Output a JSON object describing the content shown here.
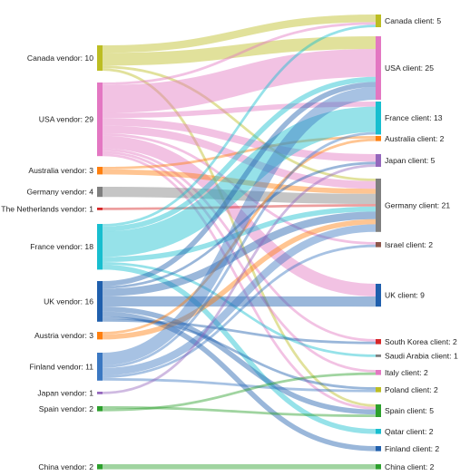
{
  "diagram": {
    "type": "sankey",
    "sources": [
      {
        "id": "canada",
        "label": "Canada vendor: 10",
        "value": 10,
        "color": "#bcbd22"
      },
      {
        "id": "usa",
        "label": "USA vendor: 29",
        "value": 29,
        "color": "#e377c2"
      },
      {
        "id": "australia",
        "label": "Australia vendor: 3",
        "value": 3,
        "color": "#ff7f0e"
      },
      {
        "id": "germany",
        "label": "Germany vendor: 4",
        "value": 4,
        "color": "#7f7f7f"
      },
      {
        "id": "netherlands",
        "label": "The Netherlands vendor: 1",
        "value": 1,
        "color": "#d62728"
      },
      {
        "id": "france",
        "label": "France vendor: 18",
        "value": 18,
        "color": "#17becf"
      },
      {
        "id": "uk",
        "label": "UK vendor: 16",
        "value": 16,
        "color": "#1f5fad"
      },
      {
        "id": "austria",
        "label": "Austria vendor: 3",
        "value": 3,
        "color": "#ff7f0e"
      },
      {
        "id": "finland",
        "label": "Finland vendor: 11",
        "value": 11,
        "color": "#3b78c2"
      },
      {
        "id": "japan",
        "label": "Japan vendor: 1",
        "value": 1,
        "color": "#9467bd"
      },
      {
        "id": "spain",
        "label": "Spain vendor: 2",
        "value": 2,
        "color": "#2ca02c"
      },
      {
        "id": "china",
        "label": "China vendor: 2",
        "value": 2,
        "color": "#2ca02c"
      }
    ],
    "targets": [
      {
        "id": "canada",
        "label": "Canada client: 5",
        "value": 5,
        "color": "#bcbd22"
      },
      {
        "id": "usa",
        "label": "USA client: 25",
        "value": 25,
        "color": "#e377c2"
      },
      {
        "id": "france",
        "label": "France client: 13",
        "value": 13,
        "color": "#17becf"
      },
      {
        "id": "australia",
        "label": "Australia client: 2",
        "value": 2,
        "color": "#ff7f0e"
      },
      {
        "id": "japan",
        "label": "Japan client: 5",
        "value": 5,
        "color": "#9467bd"
      },
      {
        "id": "germany",
        "label": "Germany client: 21",
        "value": 21,
        "color": "#7f7f7f"
      },
      {
        "id": "israel",
        "label": "Israel client: 2",
        "value": 2,
        "color": "#8c564b"
      },
      {
        "id": "uk",
        "label": "UK client: 9",
        "value": 9,
        "color": "#1f5fad"
      },
      {
        "id": "south_korea",
        "label": "South Korea client: 2",
        "value": 2,
        "color": "#d62728"
      },
      {
        "id": "saudi_arabia",
        "label": "Saudi Arabia client: 1",
        "value": 1,
        "color": "#7f7f7f"
      },
      {
        "id": "italy",
        "label": "Italy client: 2",
        "value": 2,
        "color": "#e377c2"
      },
      {
        "id": "poland",
        "label": "Poland client: 2",
        "value": 2,
        "color": "#bcbd22"
      },
      {
        "id": "spain",
        "label": "Spain client: 5",
        "value": 5,
        "color": "#2ca02c"
      },
      {
        "id": "qatar",
        "label": "Qatar client: 2",
        "value": 2,
        "color": "#17becf"
      },
      {
        "id": "finland",
        "label": "Finland client: 2",
        "value": 2,
        "color": "#1f5fad"
      },
      {
        "id": "china",
        "label": "China client: 2",
        "value": 2,
        "color": "#2ca02c"
      }
    ],
    "links": [
      {
        "from": "canada",
        "to": "canada",
        "value": 3
      },
      {
        "from": "canada",
        "to": "usa",
        "value": 5
      },
      {
        "from": "canada",
        "to": "germany",
        "value": 1
      },
      {
        "from": "canada",
        "to": "spain",
        "value": 1
      },
      {
        "from": "usa",
        "to": "canada",
        "value": 1
      },
      {
        "from": "usa",
        "to": "usa",
        "value": 11
      },
      {
        "from": "usa",
        "to": "france",
        "value": 2
      },
      {
        "from": "usa",
        "to": "japan",
        "value": 3
      },
      {
        "from": "usa",
        "to": "germany",
        "value": 3
      },
      {
        "from": "usa",
        "to": "israel",
        "value": 1
      },
      {
        "from": "usa",
        "to": "uk",
        "value": 5
      },
      {
        "from": "usa",
        "to": "south_korea",
        "value": 1
      },
      {
        "from": "usa",
        "to": "italy",
        "value": 1
      },
      {
        "from": "usa",
        "to": "spain",
        "value": 1
      },
      {
        "from": "australia",
        "to": "australia",
        "value": 1
      },
      {
        "from": "australia",
        "to": "germany",
        "value": 2
      },
      {
        "from": "germany",
        "to": "germany",
        "value": 4
      },
      {
        "from": "netherlands",
        "to": "germany",
        "value": 1
      },
      {
        "from": "france",
        "to": "canada",
        "value": 1
      },
      {
        "from": "france",
        "to": "usa",
        "value": 2
      },
      {
        "from": "france",
        "to": "france",
        "value": 10
      },
      {
        "from": "france",
        "to": "germany",
        "value": 2
      },
      {
        "from": "france",
        "to": "saudi_arabia",
        "value": 1
      },
      {
        "from": "france",
        "to": "qatar",
        "value": 2
      },
      {
        "from": "uk",
        "to": "usa",
        "value": 2
      },
      {
        "from": "uk",
        "to": "japan",
        "value": 1
      },
      {
        "from": "uk",
        "to": "germany",
        "value": 3
      },
      {
        "from": "uk",
        "to": "uk",
        "value": 4
      },
      {
        "from": "uk",
        "to": "spain",
        "value": 2
      },
      {
        "from": "uk",
        "to": "finland",
        "value": 2
      },
      {
        "from": "uk",
        "to": "poland",
        "value": 1
      },
      {
        "from": "uk",
        "to": "south_korea",
        "value": 1
      },
      {
        "from": "austria",
        "to": "australia",
        "value": 1
      },
      {
        "from": "austria",
        "to": "germany",
        "value": 2
      },
      {
        "from": "finland",
        "to": "usa",
        "value": 5
      },
      {
        "from": "finland",
        "to": "france",
        "value": 1
      },
      {
        "from": "finland",
        "to": "germany",
        "value": 3
      },
      {
        "from": "finland",
        "to": "israel",
        "value": 1
      },
      {
        "from": "finland",
        "to": "poland",
        "value": 1
      },
      {
        "from": "japan",
        "to": "japan",
        "value": 1
      },
      {
        "from": "spain",
        "to": "spain",
        "value": 1
      },
      {
        "from": "spain",
        "to": "italy",
        "value": 1
      },
      {
        "from": "china",
        "to": "china",
        "value": 2
      }
    ]
  }
}
